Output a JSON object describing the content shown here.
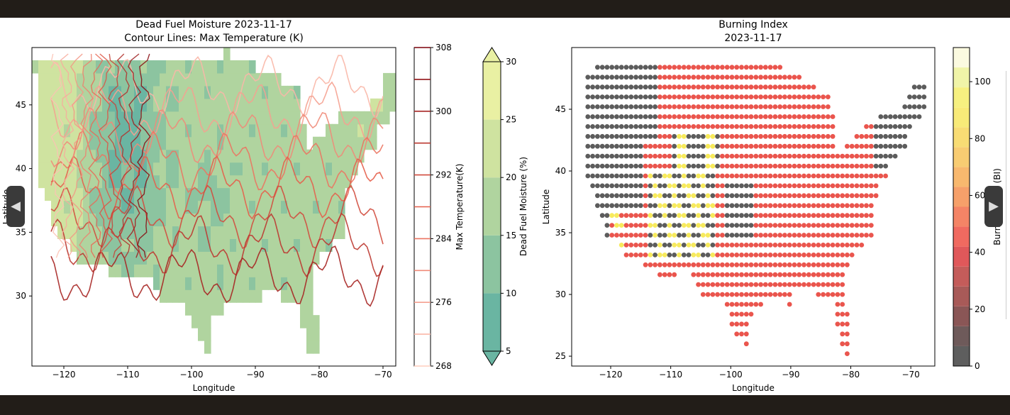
{
  "viewer": {
    "prev_icon": "chevron-left-icon",
    "next_icon": "chevron-right-icon",
    "prev_glyph": "◀",
    "next_glyph": "▶"
  },
  "chart_data": [
    {
      "type": "heatmap",
      "title": "Dead Fuel Moisture 2023-11-17",
      "subtitle": "Contour Lines: Max Temperature (K)",
      "xlabel": "Longitude",
      "ylabel": "Latitude",
      "xlim": [
        -125,
        -68
      ],
      "ylim": [
        24.5,
        49.5
      ],
      "xticks": [
        -120,
        -110,
        -100,
        -90,
        -80,
        -70
      ],
      "yticks": [
        30,
        35,
        40,
        45
      ],
      "grid": false,
      "fill_variable": {
        "label": "Dead Fuel Moisture (%)",
        "range": [
          5,
          30
        ],
        "ticks": [
          5,
          10,
          15,
          20,
          25,
          30
        ],
        "extend": "both",
        "levels": [
          5,
          10,
          15,
          20,
          25,
          30
        ],
        "colors": [
          "#6ab5a2",
          "#8cc4a0",
          "#b0d49f",
          "#cfe3a0",
          "#e9f0a3"
        ]
      },
      "contour_variable": {
        "label": "Max Temperature(K)",
        "range": [
          268,
          308
        ],
        "ticks": [
          268,
          276,
          284,
          292,
          300,
          308
        ],
        "levels": [
          268,
          272,
          276,
          280,
          284,
          288,
          292,
          296,
          300,
          304,
          308
        ]
      }
    },
    {
      "type": "scatter",
      "title": "Burning Index",
      "subtitle": "2023-11-17",
      "xlabel": "Longitude",
      "ylabel": "Latitude",
      "xlim": [
        -126.5,
        -66
      ],
      "ylim": [
        24.2,
        50
      ],
      "xticks": [
        -120,
        -110,
        -100,
        -90,
        -80,
        -70
      ],
      "yticks": [
        25,
        30,
        35,
        40,
        45
      ],
      "grid": false,
      "colorbar": {
        "label": "Burning Index (BI)",
        "range": [
          0,
          112
        ],
        "ticks": [
          0,
          20,
          40,
          60,
          80,
          100
        ]
      },
      "value_groups": {
        "low_BI": "~5 (dark grey)",
        "moderate_BI": "~35-45 (red)",
        "high_BI": "~80-90 (yellow)"
      }
    }
  ]
}
